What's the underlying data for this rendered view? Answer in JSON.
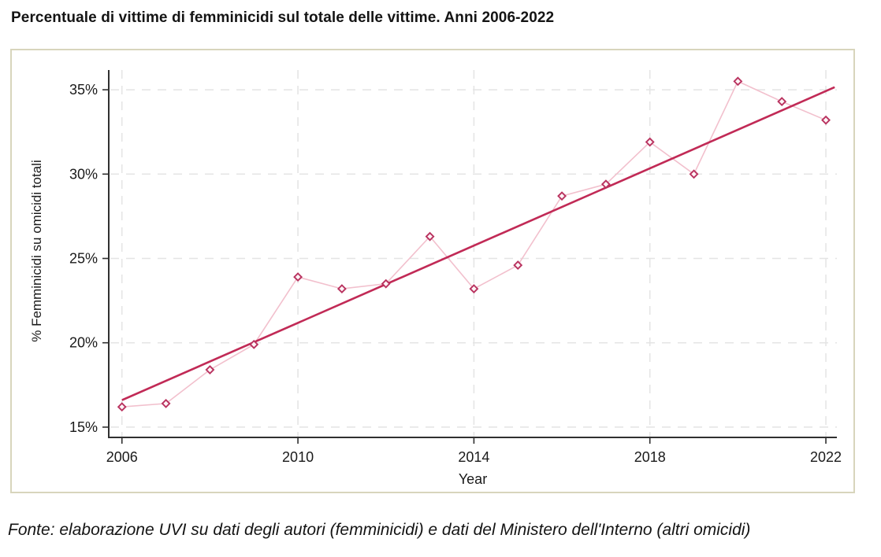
{
  "page": {
    "title": "Percentuale di vittime di femminicidi sul totale delle vittime. Anni 2006-2022",
    "source_note": "Fonte: elaborazione UVI su dati degli autori  (femminicidi) e dati del Ministero dell'Interno (altri omicidi)"
  },
  "chart_data": {
    "type": "line",
    "title": "Percentuale di vittime di femminicidi sul totale delle vittime. Anni 2006-2022",
    "xlabel": "Year",
    "ylabel": "% Femminicidi su omicidi totali",
    "x": [
      2006,
      2007,
      2008,
      2009,
      2010,
      2011,
      2012,
      2013,
      2014,
      2015,
      2016,
      2017,
      2018,
      2019,
      2020,
      2021,
      2022
    ],
    "series": [
      {
        "name": "% Femminicidi su omicidi totali",
        "marker": "diamond-hollow",
        "values": [
          16.2,
          16.4,
          18.4,
          19.9,
          23.9,
          23.2,
          23.5,
          26.3,
          23.2,
          24.6,
          28.7,
          29.4,
          31.9,
          30.0,
          35.5,
          34.3,
          33.2
        ]
      }
    ],
    "trend_line": {
      "x": [
        2006,
        2022.2
      ],
      "values": [
        16.6,
        35.15
      ]
    },
    "x_ticks": [
      2006,
      2010,
      2014,
      2018,
      2022
    ],
    "y_ticks": [
      15,
      20,
      25,
      30,
      35
    ],
    "y_tick_suffix": "%",
    "xlim": [
      2005.7,
      2022.25
    ],
    "ylim": [
      14.39,
      36.17
    ],
    "grid": true,
    "legend": false,
    "colors": {
      "marker_stroke": "#b9325f",
      "marker_fill": "#fdf4f6",
      "series_line": "#f2c0cd",
      "trend_line": "#c12a56",
      "grid_line": "#e4e4e4",
      "axis_line": "#303030",
      "panel_border": "#d8d5bc",
      "text": "#1a1a1a"
    }
  }
}
